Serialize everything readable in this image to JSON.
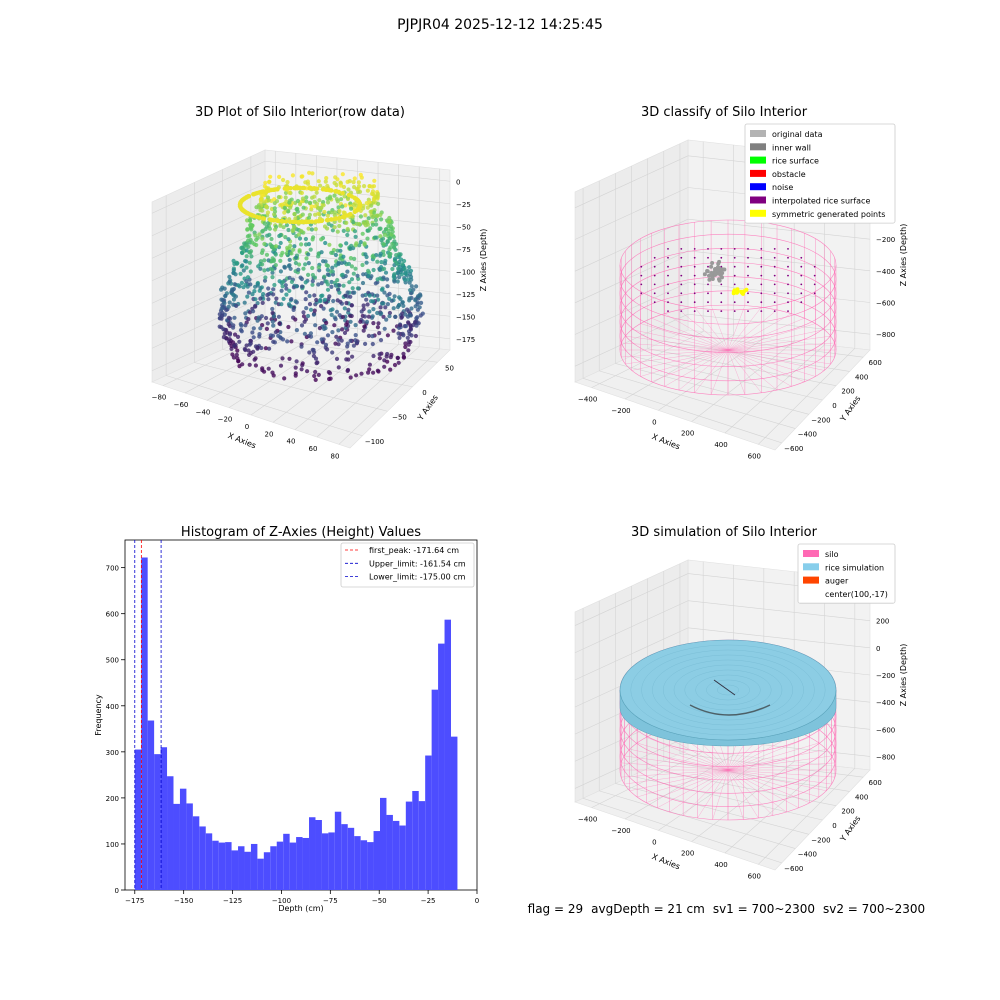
{
  "figure": {
    "suptitle": "PJPJR04 2025-12-12 14:25:45",
    "status": {
      "flag": "flag = 29",
      "avg_depth": "avgDepth = 21 cm",
      "sv1": "sv1 = 700~2300",
      "sv2": "sv2 = 700~2300"
    }
  },
  "chart_data": [
    {
      "type": "scatter",
      "projection": "3d",
      "title": "3D Plot of Silo Interior(row data)",
      "xlabel": "X Axies",
      "ylabel": "Y Axies",
      "zlabel": "Z Axies (Depth)",
      "xticks": [
        "−80",
        "−60",
        "−40",
        "−20",
        "0",
        "20",
        "40",
        "60",
        "80"
      ],
      "yticks": [
        "−100",
        "−50",
        "0",
        "50"
      ],
      "zticks": [
        "0",
        "−25",
        "−50",
        "−75",
        "−100",
        "−125",
        "−150",
        "−175"
      ],
      "xlim": [
        -85,
        85
      ],
      "ylim": [
        -120,
        70
      ],
      "zlim": [
        -185,
        5
      ],
      "colormap": "viridis",
      "grid": true
    },
    {
      "type": "scatter",
      "projection": "3d",
      "title": "3D classify of Silo Interior",
      "xlabel": "X Axies",
      "ylabel": "Y Axies",
      "zlabel": "Z Axies (Depth)",
      "xticks": [
        "−400",
        "−200",
        "0",
        "200",
        "400",
        "600"
      ],
      "yticks": [
        "−600",
        "−400",
        "−200",
        "0",
        "200",
        "400",
        "600"
      ],
      "zticks": [
        "200",
        "0",
        "−200",
        "−400",
        "−600",
        "−800"
      ],
      "xlim": [
        -500,
        700
      ],
      "ylim": [
        -650,
        650
      ],
      "zlim": [
        -900,
        300
      ],
      "grid": true,
      "legend_position": "top-right",
      "legend": [
        {
          "label": "original data",
          "color": "#b3b3b3"
        },
        {
          "label": "inner wall",
          "color": "#808080"
        },
        {
          "label": "rice surface",
          "color": "#00ff00"
        },
        {
          "label": "obstacle",
          "color": "#ff0000"
        },
        {
          "label": "noise",
          "color": "#0000ff"
        },
        {
          "label": "interpolated rice surface",
          "color": "#800080"
        },
        {
          "label": "symmetric generated points",
          "color": "#ffff00"
        }
      ]
    },
    {
      "type": "bar",
      "title": "Histogram of Z-Axies (Height) Values",
      "xlabel": "Depth (cm)",
      "ylabel": "Frequency",
      "xlim": [
        -180,
        0
      ],
      "ylim": [
        0,
        760
      ],
      "xticks": [
        -175,
        -150,
        -125,
        -100,
        -75,
        -50,
        -25,
        0
      ],
      "yticks": [
        0,
        100,
        200,
        300,
        400,
        500,
        600,
        700
      ],
      "bin_start": -175,
      "bin_width": 3.3,
      "values": [
        305,
        722,
        368,
        295,
        310,
        247,
        187,
        220,
        188,
        160,
        138,
        123,
        107,
        103,
        104,
        86,
        95,
        83,
        100,
        68,
        82,
        95,
        105,
        122,
        103,
        115,
        113,
        158,
        152,
        123,
        125,
        170,
        143,
        135,
        117,
        108,
        104,
        128,
        200,
        163,
        150,
        140,
        192,
        215,
        193,
        292,
        435,
        535,
        587,
        333
      ],
      "bar_color": "#4d4dff",
      "vlines": [
        {
          "x": -171.64,
          "color": "#ff0000",
          "label": "first_peak: -171.64 cm"
        },
        {
          "x": -161.54,
          "color": "#0000cc",
          "label": "Upper_limit: -161.54 cm"
        },
        {
          "x": -175.0,
          "color": "#0000cc",
          "label": "Lower_limit: -175.00 cm"
        }
      ],
      "legend_position": "top-right",
      "grid": false
    },
    {
      "type": "area",
      "projection": "3d",
      "title": "3D simulation of Silo Interior",
      "xlabel": "X Axies",
      "ylabel": "Y Axies",
      "zlabel": "Z Axies (Depth)",
      "xticks": [
        "−400",
        "−200",
        "0",
        "200",
        "400",
        "600"
      ],
      "yticks": [
        "−600",
        "−400",
        "−200",
        "0",
        "200",
        "400",
        "600"
      ],
      "zticks": [
        "400",
        "200",
        "0",
        "−200",
        "−400",
        "−600",
        "−800"
      ],
      "xlim": [
        -500,
        700
      ],
      "ylim": [
        -650,
        650
      ],
      "zlim": [
        -900,
        450
      ],
      "grid": true,
      "legend_position": "top-right",
      "legend": [
        {
          "label": "silo",
          "color": "#ff69b4"
        },
        {
          "label": "rice simulation",
          "color": "#87ceeb"
        },
        {
          "label": "auger",
          "color": "#ff4500"
        },
        {
          "label": "center(100,-17)",
          "color": "#ffffff"
        }
      ]
    }
  ]
}
